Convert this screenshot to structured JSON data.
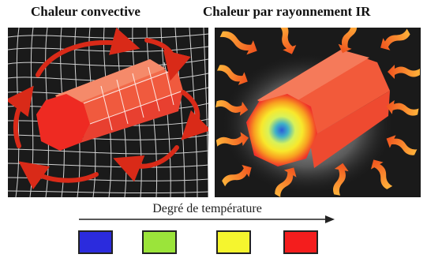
{
  "titles": {
    "left": "Chaleur convective",
    "right": "Chaleur par rayonnement IR"
  },
  "legend": {
    "axis_label": "Degré de température",
    "swatch_colors": [
      "#2b2bdd",
      "#9be43a",
      "#f5f52e",
      "#f41d1d"
    ]
  },
  "colors": {
    "panel_background": "#1a1a1a",
    "hot_red": "#f0302a",
    "flow_arrow_red": "#d92a18",
    "ir_arrow_orange": "#ff9a1f",
    "grid_lines": "#e6e6e6"
  }
}
